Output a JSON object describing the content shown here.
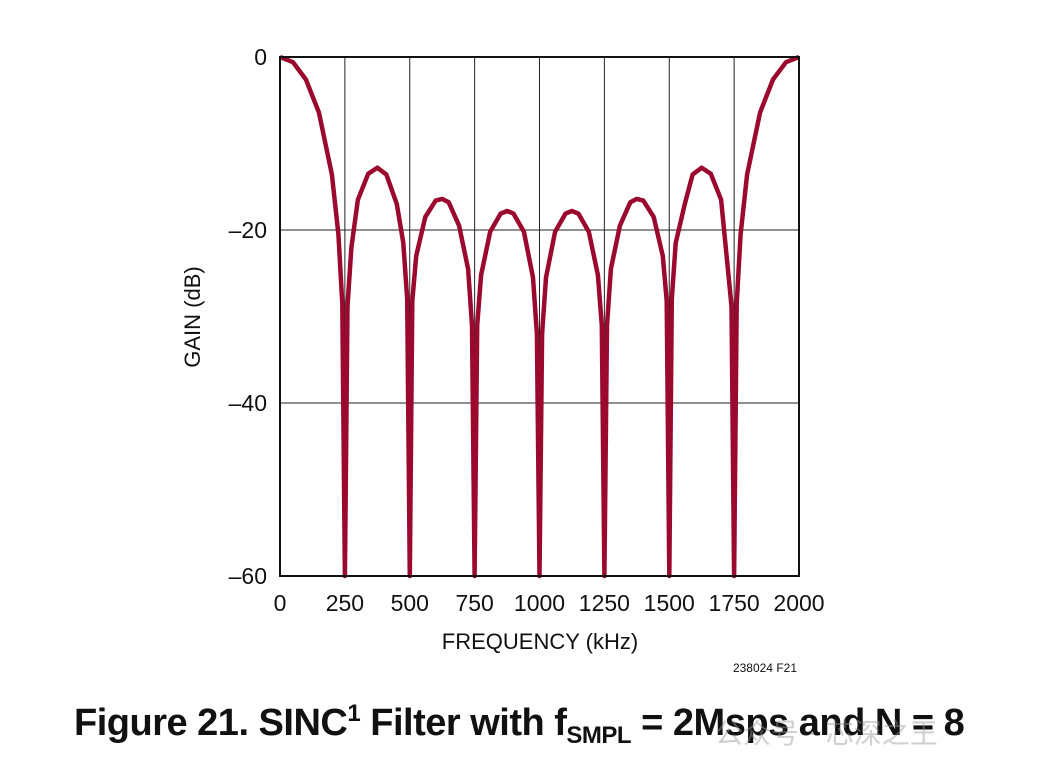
{
  "chart_data": {
    "type": "line",
    "title": "",
    "xlabel": "FREQUENCY (kHz)",
    "ylabel": "GAIN (dB)",
    "xlim": [
      0,
      2000
    ],
    "ylim": [
      -60,
      0
    ],
    "x_ticks": [
      "0",
      "250",
      "500",
      "750",
      "1000",
      "1250",
      "1500",
      "1750",
      "2000"
    ],
    "y_ticks": [
      "0",
      "–20",
      "–40",
      "–60"
    ],
    "grid": true,
    "line_color": "#9b0a2e",
    "series": [
      {
        "x": [
          0,
          50,
          100,
          150,
          200,
          225,
          240,
          250,
          260,
          275,
          300,
          340,
          375,
          410,
          450,
          475,
          490,
          500,
          510,
          525,
          560,
          600,
          625,
          650,
          690,
          725,
          740,
          750,
          760,
          775,
          810,
          850,
          875,
          900,
          940,
          975,
          990,
          1000,
          1010,
          1025,
          1060,
          1100,
          1125,
          1150,
          1190,
          1225,
          1240,
          1250,
          1260,
          1275,
          1310,
          1350,
          1375,
          1400,
          1440,
          1475,
          1490,
          1500,
          1510,
          1525,
          1560,
          1590,
          1625,
          1660,
          1700,
          1740,
          1750,
          1760,
          1775,
          1800,
          1850,
          1900,
          1950,
          2000
        ],
        "y": [
          0,
          -0.6,
          -2.6,
          -6.4,
          -13.6,
          -20.5,
          -28.5,
          -60,
          -28.8,
          -22,
          -16.5,
          -13.5,
          -12.8,
          -13.6,
          -17,
          -21.5,
          -28,
          -60,
          -28.2,
          -23,
          -18.5,
          -16.6,
          -16.4,
          -16.8,
          -19.5,
          -24.5,
          -31,
          -60,
          -31,
          -25.2,
          -20.2,
          -18.1,
          -17.8,
          -18.1,
          -20.2,
          -25.5,
          -32,
          -60,
          -32,
          -25.5,
          -20.2,
          -18.1,
          -17.8,
          -18.1,
          -20.2,
          -25.2,
          -31,
          -60,
          -31,
          -24.5,
          -19.5,
          -16.8,
          -16.4,
          -16.6,
          -18.5,
          -23,
          -28.2,
          -60,
          -28,
          -21.5,
          -17,
          -13.6,
          -12.8,
          -13.5,
          -16.5,
          -28.8,
          -60,
          -28.5,
          -20.5,
          -13.6,
          -6.4,
          -2.6,
          -0.6,
          0
        ]
      }
    ]
  },
  "figure_code": "238024 F21",
  "caption": {
    "prefix": "Figure 21. SINC",
    "sup": "1",
    "middle": " Filter with f",
    "sub": "SMPL",
    "suffix": " = 2Msps and N = 8"
  },
  "watermark": "公众号 · 芯深之王"
}
